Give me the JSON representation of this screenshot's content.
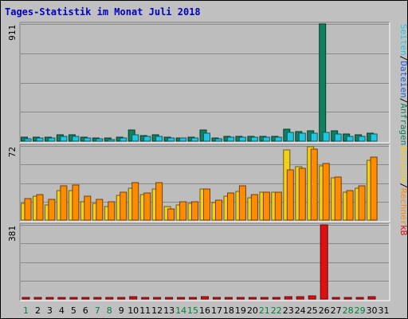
{
  "title": "Tages-Statistik im Monat Juli 2018",
  "colors": {
    "background": "#c0c0c0",
    "plot_bg": "#bdbdbd",
    "title": "#0000c0",
    "weekday_label": "#006000",
    "weekend_label": "#008040",
    "anfragen": "#12805f",
    "dateien": "#1fc8e0",
    "seiten": "#1fc8e0",
    "besuche": "#f2d01a",
    "rechner": "#ff8c00",
    "kb": "#e01010",
    "slash": "#000000"
  },
  "chart_data": [
    {
      "type": "bar",
      "panel": "top",
      "ymax_label": "911",
      "ylim": [
        0,
        911
      ],
      "categories": [
        "1",
        "2",
        "3",
        "4",
        "5",
        "6",
        "7",
        "8",
        "9",
        "10",
        "11",
        "12",
        "13",
        "14",
        "15",
        "16",
        "17",
        "18",
        "19",
        "20",
        "21",
        "22",
        "23",
        "24",
        "25",
        "26",
        "27",
        "28",
        "29",
        "30",
        "31"
      ],
      "weekend_days": [
        "1",
        "7",
        "8",
        "14",
        "15",
        "21",
        "22",
        "28",
        "29"
      ],
      "right_labels": [
        {
          "text": "Anfragen",
          "color": "#12805f"
        },
        {
          "text": "/",
          "color": "#000000"
        },
        {
          "text": "Dateien",
          "color": "#2060e0"
        },
        {
          "text": "/",
          "color": "#000000"
        },
        {
          "text": "Seiten",
          "color": "#1fc8e0"
        }
      ],
      "series": [
        {
          "name": "Anfragen",
          "color": "#12805f",
          "values": [
            28,
            30,
            30,
            52,
            52,
            28,
            25,
            22,
            28,
            85,
            45,
            52,
            28,
            25,
            28,
            85,
            25,
            40,
            40,
            35,
            40,
            40,
            90,
            75,
            80,
            911,
            78,
            55,
            50,
            65,
            0
          ]
        },
        {
          "name": "Dateien",
          "color": "#1fc8e0",
          "values": [
            18,
            22,
            22,
            40,
            40,
            22,
            18,
            15,
            22,
            50,
            35,
            35,
            22,
            22,
            22,
            60,
            20,
            30,
            30,
            28,
            30,
            30,
            70,
            60,
            65,
            70,
            58,
            40,
            38,
            55,
            0
          ]
        }
      ]
    },
    {
      "type": "bar",
      "panel": "middle",
      "ymax_label": "72",
      "ylim": [
        0,
        72
      ],
      "right_labels": [
        {
          "text": "Rechner",
          "color": "#ff8c00"
        },
        {
          "text": "/",
          "color": "#000000"
        },
        {
          "text": "Besuche",
          "color": "#f2d01a"
        }
      ],
      "series": [
        {
          "name": "Besuche",
          "color": "#f2d01a",
          "values": [
            16,
            23,
            15,
            29,
            29,
            18,
            16,
            13,
            24,
            31,
            25,
            30,
            13,
            15,
            16,
            30,
            17,
            23,
            28,
            22,
            27,
            27,
            68,
            52,
            71,
            53,
            41,
            27,
            31,
            58,
            0
          ]
        },
        {
          "name": "Rechner",
          "color": "#ff8c00",
          "values": [
            21,
            25,
            20,
            33,
            34,
            23,
            20,
            18,
            27,
            36,
            26,
            36,
            11,
            18,
            18,
            30,
            19,
            26,
            33,
            25,
            27,
            27,
            49,
            50,
            69,
            55,
            42,
            29,
            33,
            61,
            0
          ]
        }
      ]
    },
    {
      "type": "bar",
      "panel": "bottom",
      "ymax_label": "381",
      "ylim": [
        0,
        381
      ],
      "right_labels": [
        {
          "text": "kB",
          "color": "#e01010"
        }
      ],
      "series": [
        {
          "name": "kB",
          "color": "#e01010",
          "values": [
            5,
            6,
            6,
            8,
            10,
            6,
            5,
            5,
            7,
            12,
            8,
            9,
            5,
            5,
            6,
            12,
            6,
            8,
            8,
            7,
            7,
            7,
            14,
            13,
            16,
            381,
            8,
            7,
            7,
            12,
            0
          ]
        }
      ]
    }
  ]
}
